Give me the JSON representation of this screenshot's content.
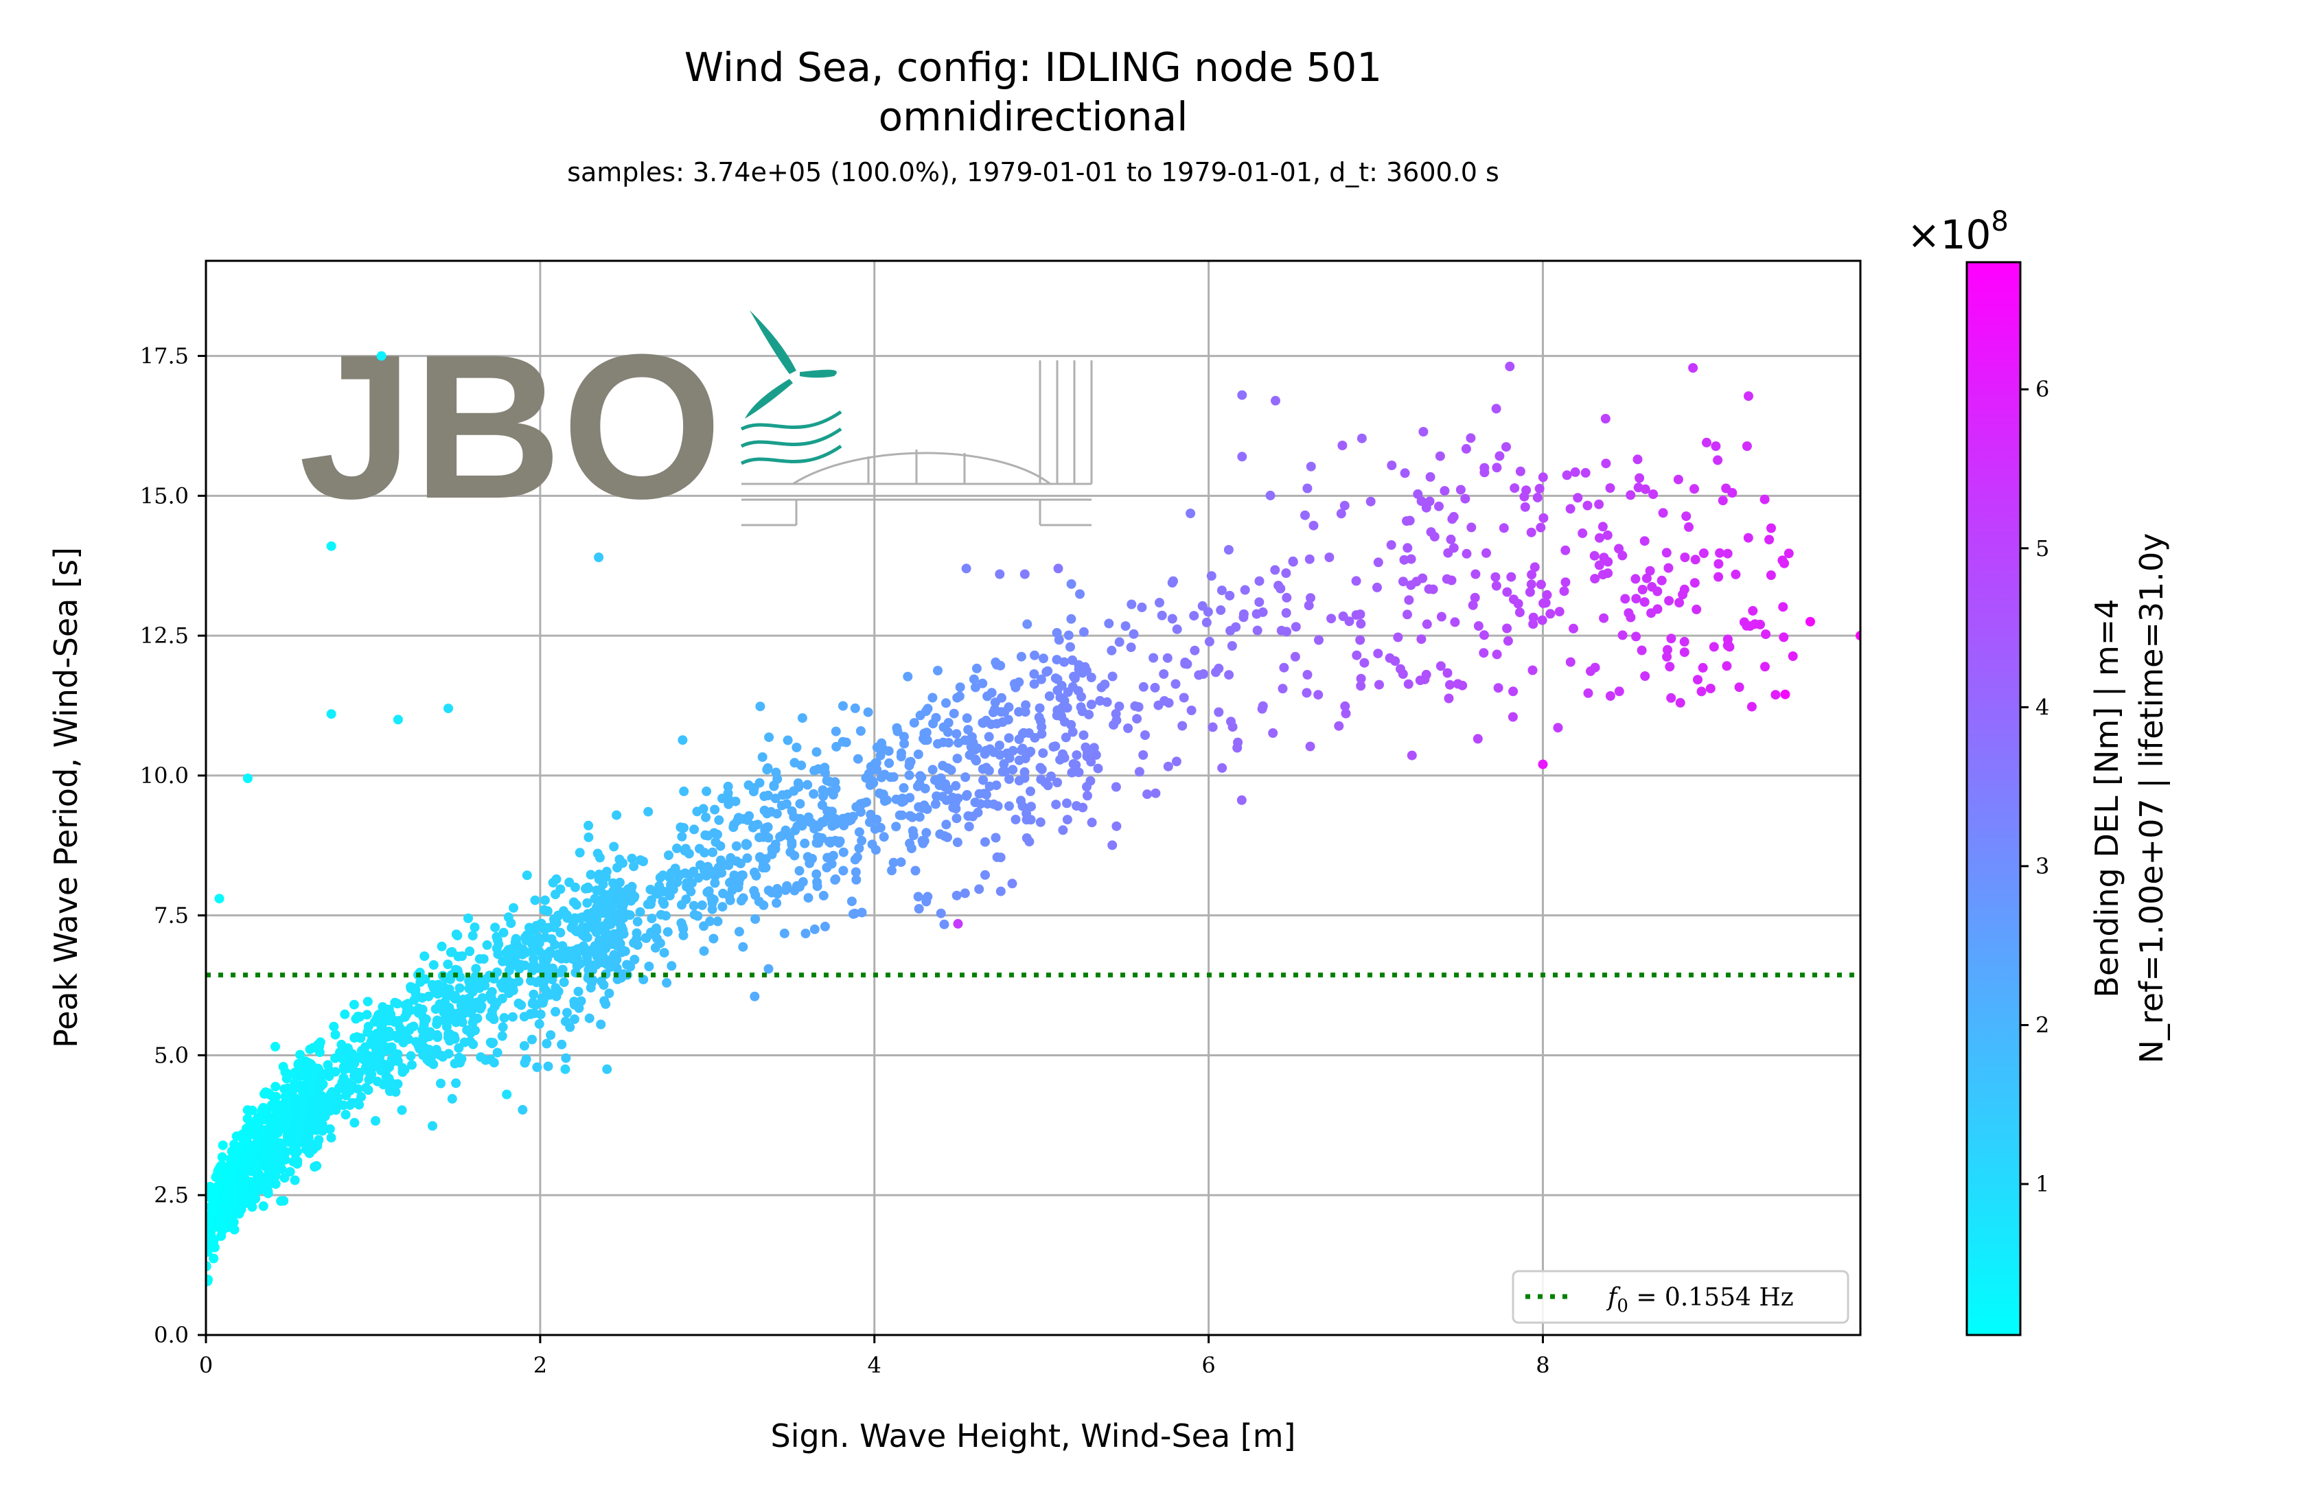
{
  "chart_data": {
    "type": "scatter",
    "title": "Wind Sea, config: IDLING node 501",
    "title_line2": "omnidirectional",
    "subtitle": "samples: 3.74e+05 (100.0%), 1979-01-01 to 1979-01-01, d_t: 3600.0 s",
    "xlabel": "Sign. Wave Height, Wind-Sea [m]",
    "ylabel": "Peak Wave Period, Wind-Sea [s]",
    "xlim": [
      0,
      9.9
    ],
    "ylim": [
      0,
      19.2
    ],
    "x_ticks": [
      "0",
      "2",
      "4",
      "6",
      "8"
    ],
    "y_ticks": [
      "0.0",
      "2.5",
      "5.0",
      "7.5",
      "10.0",
      "12.5",
      "15.0",
      "17.5"
    ],
    "grid": true,
    "hline": {
      "y": 6.435,
      "style": "dotted",
      "color": "#008000"
    },
    "legend": {
      "label_main": "f",
      "label_sub": "0",
      "label_rest": " = 0.1554 Hz",
      "placement": "bottom-right"
    },
    "colorbar": {
      "label_line1": "Bending DEL [Nm] | m=4",
      "label_line2": "N_ref=1.00e+07 | lifetime=31.0y",
      "multiplier_text": "×10",
      "multiplier_exp": "8",
      "range": [
        0.05,
        6.8
      ],
      "ticks": [
        "1",
        "2",
        "3",
        "4",
        "5",
        "6"
      ],
      "colormap": [
        "#00ffff",
        "#ff00ff"
      ]
    },
    "outliers": [
      {
        "x": 1.05,
        "y": 17.5,
        "c": 0.4
      },
      {
        "x": 0.75,
        "y": 14.1,
        "c": 0.3
      },
      {
        "x": 2.35,
        "y": 13.9,
        "c": 1.5
      },
      {
        "x": 0.75,
        "y": 11.1,
        "c": 0.5
      },
      {
        "x": 1.15,
        "y": 11.0,
        "c": 0.6
      },
      {
        "x": 1.45,
        "y": 11.2,
        "c": 0.9
      },
      {
        "x": 0.25,
        "y": 9.95,
        "c": 0.3
      },
      {
        "x": 0.08,
        "y": 7.8,
        "c": 0.2
      },
      {
        "x": 1.8,
        "y": 4.3,
        "c": 0.8
      },
      {
        "x": 2.15,
        "y": 4.75,
        "c": 1.2
      },
      {
        "x": 2.4,
        "y": 4.75,
        "c": 1.4
      },
      {
        "x": 6.2,
        "y": 16.8,
        "c": 3.8
      },
      {
        "x": 6.4,
        "y": 16.7,
        "c": 4.0
      },
      {
        "x": 6.2,
        "y": 15.7,
        "c": 3.9
      },
      {
        "x": 6.8,
        "y": 15.9,
        "c": 4.3
      },
      {
        "x": 7.65,
        "y": 15.5,
        "c": 4.7
      },
      {
        "x": 7.9,
        "y": 15.1,
        "c": 4.9
      },
      {
        "x": 4.55,
        "y": 13.7,
        "c": 3.3
      },
      {
        "x": 4.75,
        "y": 13.6,
        "c": 3.4
      },
      {
        "x": 4.9,
        "y": 13.6,
        "c": 3.5
      },
      {
        "x": 5.1,
        "y": 13.7,
        "c": 3.6
      },
      {
        "x": 4.5,
        "y": 7.35,
        "c": 5.3
      },
      {
        "x": 9.9,
        "y": 12.5,
        "c": 6.8
      },
      {
        "x": 9.45,
        "y": 11.45,
        "c": 6.5
      },
      {
        "x": 9.6,
        "y": 12.75,
        "c": 6.5
      },
      {
        "x": 8.85,
        "y": 13.9,
        "c": 5.5
      },
      {
        "x": 9.05,
        "y": 13.55,
        "c": 5.7
      },
      {
        "x": 8.0,
        "y": 10.2,
        "c": 6.2
      }
    ]
  }
}
